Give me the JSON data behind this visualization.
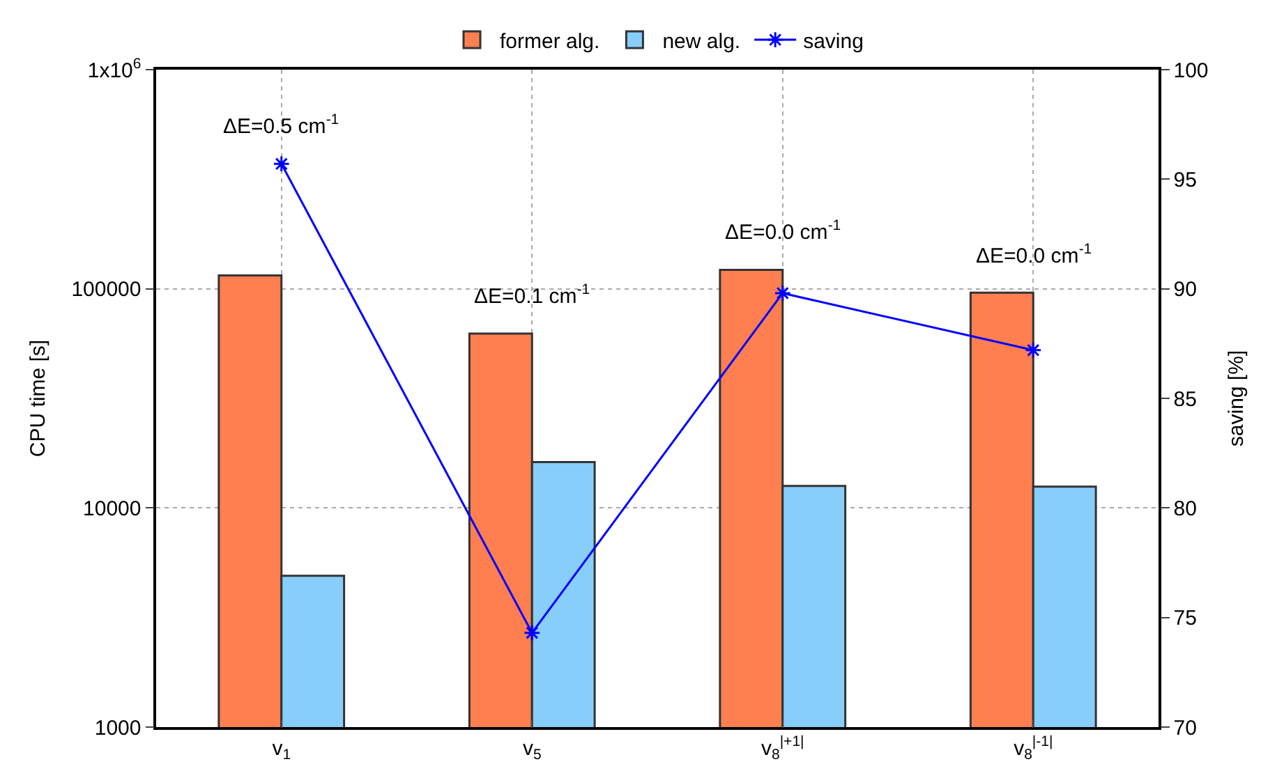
{
  "chart_data": {
    "type": "bar",
    "categories": [
      "v$_{1}$",
      "v$_{5}$",
      "v$_{8}$$^{|+1|}$",
      "v$_{8}$$^{|-1|}$"
    ],
    "series": [
      {
        "name": "former alg.",
        "color": "#ff7f50",
        "values": [
          115000,
          62500,
          122000,
          96000
        ]
      },
      {
        "name": "new alg.",
        "color": "#87cefa",
        "values": [
          4900,
          16200,
          12600,
          12500
        ]
      },
      {
        "name": "saving",
        "type": "line",
        "axis": "y2",
        "color": "#0000ff",
        "marker": "cross",
        "line_style": "solid",
        "values": [
          95.7,
          74.3,
          89.8,
          87.2
        ]
      }
    ],
    "ylabel": "CPU time [s]",
    "y2label": "saving [%]",
    "log": "y",
    "ylim": [
      1000,
      1000000
    ],
    "yticks": [
      1000,
      10000,
      100000,
      {
        "value": 1000000,
        "label": "1x10$^{6}$"
      }
    ],
    "y2lim": [
      70,
      100
    ],
    "y2ticks": [
      70,
      75,
      80,
      85,
      90,
      95,
      100
    ],
    "grid": true,
    "legend": "top",
    "annotations": [
      "ΔE=0.5 cm$^{-1}$",
      "ΔE=0.1 cm$^{-1}$",
      "ΔE=0.0 cm$^{-1}$",
      "ΔE=0.0 cm$^{-1}$"
    ]
  }
}
